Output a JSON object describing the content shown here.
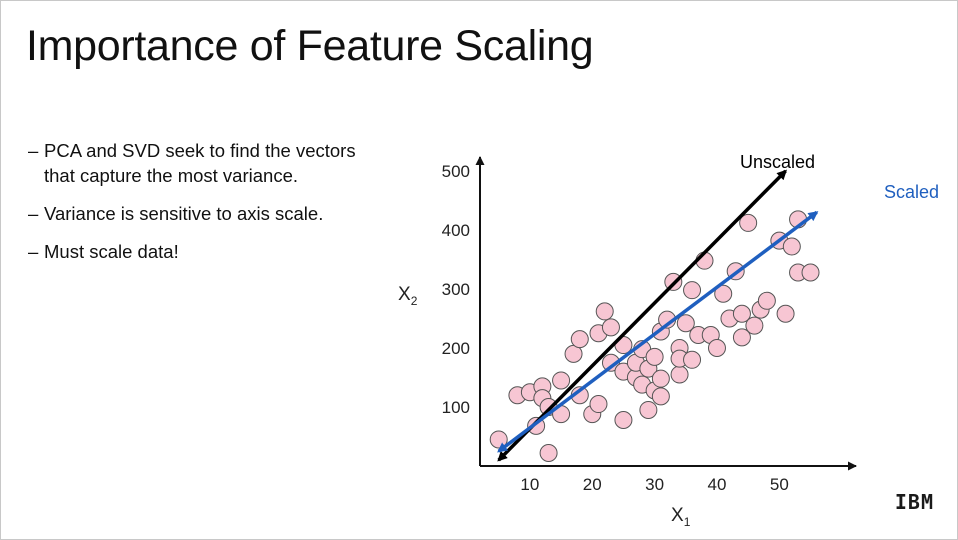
{
  "slide": {
    "title": "Importance of Feature Scaling",
    "bullets": [
      "PCA and SVD seek to find the vectors that capture the most variance.",
      "Variance is sensitive to axis scale.",
      "Must scale data!"
    ],
    "bullet_marker": "–",
    "logo_text": "IBM"
  },
  "chart_data": {
    "type": "scatter",
    "xlabel": "X",
    "xlabel_subscript": "1",
    "ylabel": "X",
    "ylabel_subscript": "2",
    "x_ticks": [
      10,
      20,
      30,
      40,
      50
    ],
    "y_ticks": [
      100,
      200,
      300,
      400,
      500
    ],
    "xlim": [
      2,
      57
    ],
    "ylim": [
      0,
      500
    ],
    "grid": false,
    "point_color": "#f7c6d3",
    "point_edge_color": "#555555",
    "points": [
      [
        5,
        45
      ],
      [
        8,
        120
      ],
      [
        10,
        125
      ],
      [
        12,
        135
      ],
      [
        12,
        115
      ],
      [
        11,
        68
      ],
      [
        13,
        100
      ],
      [
        15,
        88
      ],
      [
        15,
        145
      ],
      [
        13,
        22
      ],
      [
        17,
        190
      ],
      [
        18,
        120
      ],
      [
        18,
        215
      ],
      [
        20,
        88
      ],
      [
        21,
        225
      ],
      [
        21,
        105
      ],
      [
        22,
        262
      ],
      [
        23,
        235
      ],
      [
        23,
        175
      ],
      [
        25,
        205
      ],
      [
        25,
        160
      ],
      [
        25,
        78
      ],
      [
        27,
        150
      ],
      [
        27,
        175
      ],
      [
        28,
        138
      ],
      [
        28,
        198
      ],
      [
        29,
        165
      ],
      [
        29,
        95
      ],
      [
        30,
        185
      ],
      [
        30,
        128
      ],
      [
        31,
        118
      ],
      [
        31,
        228
      ],
      [
        31,
        148
      ],
      [
        32,
        248
      ],
      [
        33,
        312
      ],
      [
        34,
        200
      ],
      [
        34,
        155
      ],
      [
        34,
        182
      ],
      [
        35,
        242
      ],
      [
        36,
        298
      ],
      [
        36,
        180
      ],
      [
        37,
        222
      ],
      [
        38,
        348
      ],
      [
        39,
        222
      ],
      [
        40,
        200
      ],
      [
        41,
        292
      ],
      [
        42,
        250
      ],
      [
        43,
        330
      ],
      [
        44,
        258
      ],
      [
        44,
        218
      ],
      [
        45,
        412
      ],
      [
        46,
        238
      ],
      [
        47,
        265
      ],
      [
        48,
        280
      ],
      [
        50,
        382
      ],
      [
        51,
        258
      ],
      [
        52,
        372
      ],
      [
        53,
        328
      ],
      [
        53,
        418
      ],
      [
        55,
        328
      ]
    ],
    "lines": [
      {
        "name": "Unscaled",
        "color": "#000000",
        "from": [
          5,
          10
        ],
        "to": [
          51,
          500
        ]
      },
      {
        "name": "Scaled",
        "color": "#1f5fbf",
        "from": [
          5,
          25
        ],
        "to": [
          56,
          430
        ]
      }
    ]
  }
}
